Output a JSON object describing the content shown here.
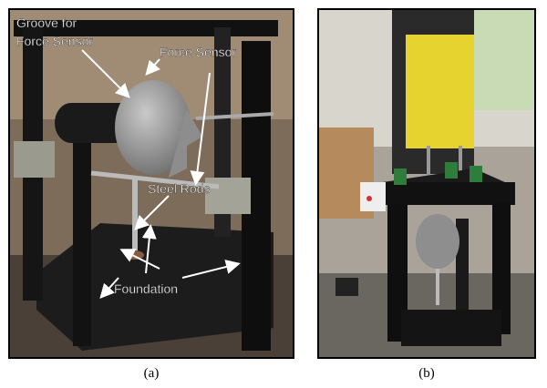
{
  "panels": [
    {
      "caption": "(a)",
      "labels": [
        "Groove for",
        "Force Sensor",
        "Force Sensor",
        "Steel Rods",
        "Foundation"
      ]
    },
    {
      "caption": "(b)"
    }
  ]
}
